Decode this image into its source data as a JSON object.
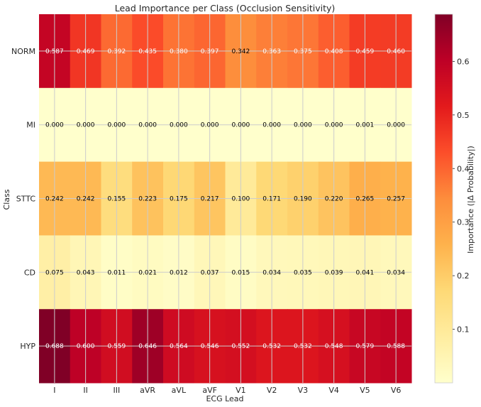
{
  "chart_data": {
    "type": "heatmap",
    "title": "Lead Importance per Class (Occlusion Sensitivity)",
    "xlabel": "ECG Lead",
    "ylabel": "Class",
    "x": [
      "I",
      "II",
      "III",
      "aVR",
      "aVL",
      "aVF",
      "V1",
      "V2",
      "V3",
      "V4",
      "V5",
      "V6"
    ],
    "y": [
      "NORM",
      "MI",
      "STTC",
      "CD",
      "HYP"
    ],
    "values": [
      [
        0.587,
        0.469,
        0.392,
        0.435,
        0.38,
        0.397,
        0.342,
        0.363,
        0.375,
        0.408,
        0.459,
        0.46
      ],
      [
        0.0,
        0.0,
        0.0,
        0.0,
        0.0,
        0.0,
        0.0,
        0.0,
        0.0,
        0.0,
        0.001,
        0.0
      ],
      [
        0.242,
        0.242,
        0.155,
        0.223,
        0.175,
        0.217,
        0.1,
        0.171,
        0.19,
        0.22,
        0.265,
        0.257
      ],
      [
        0.075,
        0.043,
        0.011,
        0.021,
        0.012,
        0.037,
        0.015,
        0.034,
        0.035,
        0.039,
        0.041,
        0.034
      ],
      [
        0.688,
        0.6,
        0.559,
        0.646,
        0.564,
        0.546,
        0.552,
        0.532,
        0.532,
        0.548,
        0.579,
        0.588
      ]
    ],
    "cell_labels": [
      [
        "0.587",
        "0.469",
        "0.392",
        "0.435",
        "0.380",
        "0.397",
        "0.342",
        "0.363",
        "0.375",
        "0.408",
        "0.459",
        "0.460"
      ],
      [
        "0.000",
        "0.000",
        "0.000",
        "0.000",
        "0.000",
        "0.000",
        "0.000",
        "0.000",
        "0.000",
        "0.000",
        "0.001",
        "0.000"
      ],
      [
        "0.242",
        "0.242",
        "0.155",
        "0.223",
        "0.175",
        "0.217",
        "0.100",
        "0.171",
        "0.190",
        "0.220",
        "0.265",
        "0.257"
      ],
      [
        "0.075",
        "0.043",
        "0.011",
        "0.021",
        "0.012",
        "0.037",
        "0.015",
        "0.034",
        "0.035",
        "0.039",
        "0.041",
        "0.034"
      ],
      [
        "0.688",
        "0.600",
        "0.559",
        "0.646",
        "0.564",
        "0.546",
        "0.552",
        "0.532",
        "0.532",
        "0.548",
        "0.579",
        "0.588"
      ]
    ],
    "colormap": "YlOrRd",
    "colormap_stops": [
      "#ffffcc",
      "#ffeda0",
      "#fed976",
      "#feb24c",
      "#fd8d3c",
      "#fc4e2a",
      "#e31a1c",
      "#bd0026",
      "#800026"
    ],
    "vmin": 0.0,
    "vmax": 0.688,
    "text_color_threshold": 0.344,
    "text_color_light": "#ffffff",
    "text_color_dark": "#000000",
    "grid": true,
    "grid_color": "#cccccc",
    "colorbar": {
      "label": "Importance (|Δ Probability|)",
      "ticks": [
        0.1,
        0.2,
        0.3,
        0.4,
        0.5,
        0.6
      ],
      "tick_labels": [
        "0.1",
        "0.2",
        "0.3",
        "0.4",
        "0.5",
        "0.6"
      ]
    }
  }
}
